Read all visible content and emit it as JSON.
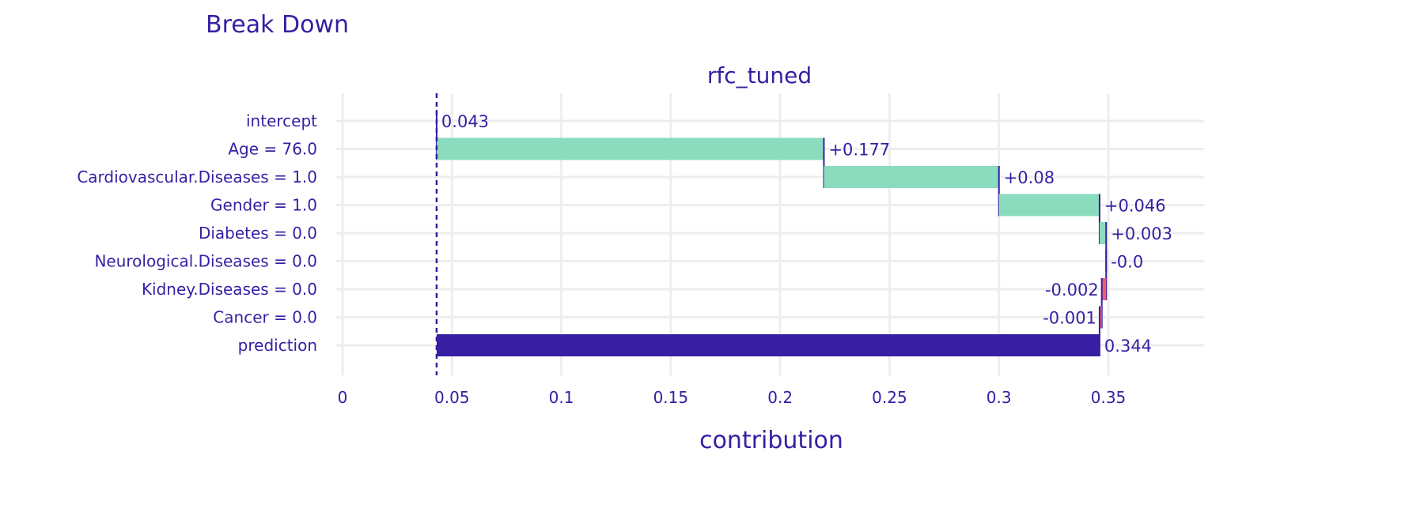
{
  "chart_data": {
    "type": "bar",
    "subtype": "waterfall-break-down",
    "title": "Break Down",
    "subtitle": "rfc_tuned",
    "xlabel": "contribution",
    "ylabel": "",
    "xlim": [
      0,
      0.39
    ],
    "xticks": [
      0,
      0.05,
      0.1,
      0.15,
      0.2,
      0.25,
      0.3,
      0.35
    ],
    "xtick_labels": [
      "0",
      "0.05",
      "0.1",
      "0.15",
      "0.2",
      "0.25",
      "0.3",
      "0.35"
    ],
    "grid": true,
    "legend": "none",
    "categories": [
      "intercept",
      "Age = 76.0",
      "Cardiovascular.Diseases = 1.0",
      "Gender = 1.0",
      "Diabetes = 0.0",
      "Neurological.Diseases = 0.0",
      "Kidney.Diseases = 0.0",
      "Cancer = 0.0",
      "prediction"
    ],
    "values": [
      0.043,
      0.177,
      0.08,
      0.046,
      0.003,
      -0.0,
      -0.002,
      -0.001,
      0.344
    ],
    "labels": [
      "0.043",
      "+0.177",
      "+0.08",
      "+0.046",
      "+0.003",
      "-0.0",
      "-0.002",
      "-0.001",
      "0.344"
    ],
    "colors": {
      "positive": "#8bdcbe",
      "negative": "#f05a71",
      "prediction": "#371ea3",
      "text": "#371ea3",
      "grid": "#eeeeee"
    }
  }
}
